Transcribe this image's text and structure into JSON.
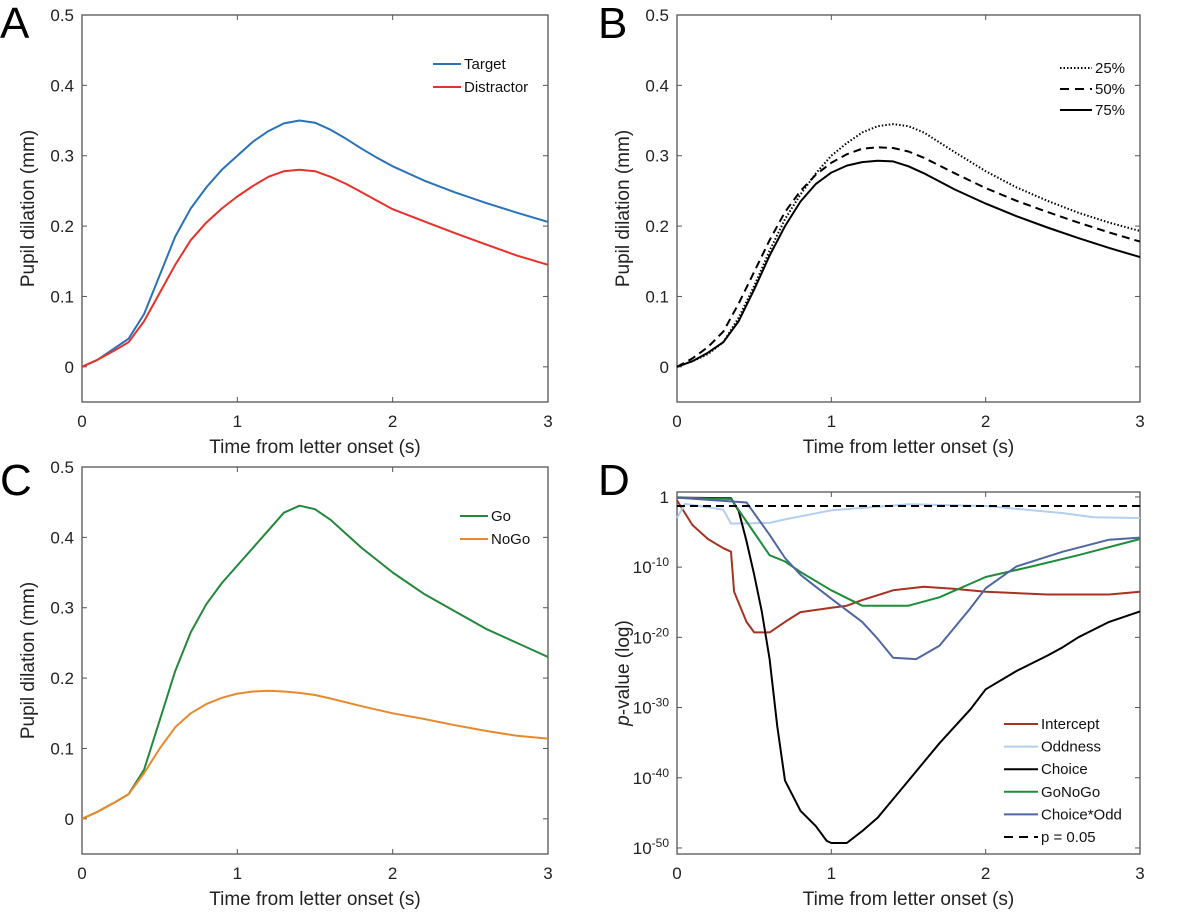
{
  "chart_data": [
    {
      "panel": "A",
      "type": "line",
      "xlabel": "Time from letter onset (s)",
      "ylabel": "Pupil dilation (mm)",
      "xlim": [
        0,
        3
      ],
      "ylim": [
        -0.05,
        0.5
      ],
      "xticks": [
        0,
        1,
        2,
        3
      ],
      "yticks": [
        0,
        0.1,
        0.2,
        0.3,
        0.4,
        0.5
      ],
      "legend_position": "top-right",
      "grid": false,
      "x": [
        0,
        0.1,
        0.2,
        0.3,
        0.4,
        0.5,
        0.6,
        0.7,
        0.8,
        0.9,
        1.0,
        1.1,
        1.2,
        1.3,
        1.4,
        1.5,
        1.6,
        1.7,
        1.8,
        1.9,
        2.0,
        2.2,
        2.4,
        2.6,
        2.8,
        3.0
      ],
      "series": [
        {
          "name": "Target",
          "color": "#2a72b8",
          "style": "solid",
          "values": [
            0,
            0.01,
            0.025,
            0.04,
            0.075,
            0.13,
            0.185,
            0.225,
            0.255,
            0.28,
            0.3,
            0.32,
            0.335,
            0.346,
            0.35,
            0.347,
            0.337,
            0.324,
            0.31,
            0.297,
            0.285,
            0.265,
            0.248,
            0.233,
            0.219,
            0.206
          ]
        },
        {
          "name": "Distractor",
          "color": "#e8312a",
          "style": "solid",
          "values": [
            0,
            0.01,
            0.022,
            0.035,
            0.065,
            0.105,
            0.145,
            0.18,
            0.205,
            0.225,
            0.242,
            0.257,
            0.27,
            0.278,
            0.28,
            0.278,
            0.27,
            0.26,
            0.248,
            0.236,
            0.224,
            0.207,
            0.19,
            0.174,
            0.158,
            0.145
          ]
        }
      ]
    },
    {
      "panel": "B",
      "type": "line",
      "xlabel": "Time from letter onset (s)",
      "ylabel": "Pupil dilation (mm)",
      "xlim": [
        0,
        3
      ],
      "ylim": [
        -0.05,
        0.5
      ],
      "xticks": [
        0,
        1,
        2,
        3
      ],
      "yticks": [
        0,
        0.1,
        0.2,
        0.3,
        0.4,
        0.5
      ],
      "legend_position": "top-right",
      "grid": false,
      "x": [
        0,
        0.1,
        0.2,
        0.3,
        0.4,
        0.5,
        0.6,
        0.7,
        0.8,
        0.9,
        1.0,
        1.1,
        1.2,
        1.3,
        1.4,
        1.5,
        1.6,
        1.8,
        2.0,
        2.2,
        2.4,
        2.6,
        2.8,
        3.0
      ],
      "series": [
        {
          "name": "25%",
          "color": "#000000",
          "style": "dotted",
          "values": [
            0,
            0.008,
            0.018,
            0.035,
            0.07,
            0.115,
            0.165,
            0.21,
            0.245,
            0.275,
            0.3,
            0.318,
            0.333,
            0.342,
            0.345,
            0.342,
            0.333,
            0.305,
            0.278,
            0.255,
            0.236,
            0.219,
            0.205,
            0.193
          ]
        },
        {
          "name": "50%",
          "color": "#000000",
          "style": "dashed",
          "values": [
            0,
            0.012,
            0.028,
            0.05,
            0.09,
            0.135,
            0.18,
            0.22,
            0.25,
            0.273,
            0.29,
            0.302,
            0.31,
            0.312,
            0.311,
            0.306,
            0.297,
            0.275,
            0.254,
            0.236,
            0.22,
            0.205,
            0.191,
            0.178
          ]
        },
        {
          "name": "75%",
          "color": "#000000",
          "style": "solid",
          "values": [
            0,
            0.008,
            0.02,
            0.035,
            0.065,
            0.11,
            0.158,
            0.2,
            0.235,
            0.26,
            0.276,
            0.286,
            0.291,
            0.293,
            0.292,
            0.285,
            0.275,
            0.252,
            0.232,
            0.214,
            0.198,
            0.183,
            0.169,
            0.156
          ]
        }
      ]
    },
    {
      "panel": "C",
      "type": "line",
      "xlabel": "Time from letter onset (s)",
      "ylabel": "Pupil dilation (mm)",
      "xlim": [
        0,
        3
      ],
      "ylim": [
        -0.05,
        0.5
      ],
      "xticks": [
        0,
        1,
        2,
        3
      ],
      "yticks": [
        0,
        0.1,
        0.2,
        0.3,
        0.4,
        0.5
      ],
      "legend_position": "top-right",
      "grid": false,
      "x": [
        0,
        0.1,
        0.2,
        0.3,
        0.4,
        0.5,
        0.6,
        0.7,
        0.8,
        0.9,
        1.0,
        1.1,
        1.2,
        1.3,
        1.4,
        1.5,
        1.6,
        1.8,
        2.0,
        2.2,
        2.4,
        2.6,
        2.8,
        3.0
      ],
      "series": [
        {
          "name": "Go",
          "color": "#23883b",
          "style": "solid",
          "values": [
            0,
            0.01,
            0.022,
            0.035,
            0.07,
            0.14,
            0.21,
            0.265,
            0.305,
            0.335,
            0.36,
            0.385,
            0.41,
            0.435,
            0.445,
            0.44,
            0.425,
            0.385,
            0.35,
            0.32,
            0.295,
            0.27,
            0.25,
            0.23
          ]
        },
        {
          "name": "NoGo",
          "color": "#e8892e",
          "style": "solid",
          "values": [
            0,
            0.01,
            0.022,
            0.035,
            0.065,
            0.1,
            0.13,
            0.15,
            0.163,
            0.172,
            0.178,
            0.181,
            0.182,
            0.181,
            0.179,
            0.176,
            0.171,
            0.16,
            0.15,
            0.142,
            0.133,
            0.125,
            0.118,
            0.114
          ]
        }
      ]
    },
    {
      "panel": "D",
      "type": "line",
      "xlabel": "Time from letter onset (s)",
      "ylabel_italic": "p",
      "ylabel": "-value (log)",
      "xlim": [
        0,
        3
      ],
      "y_scale": "log",
      "ylim_log10": [
        -50.86,
        0.7
      ],
      "xticks": [
        0,
        1,
        2,
        3
      ],
      "yticks": [
        {
          "base": "1",
          "exp": ""
        },
        {
          "base": "10",
          "exp": "-10"
        },
        {
          "base": "10",
          "exp": "-20"
        },
        {
          "base": "10",
          "exp": "-30"
        },
        {
          "base": "10",
          "exp": "-40"
        },
        {
          "base": "10",
          "exp": "-50"
        }
      ],
      "ytick_log10": [
        0,
        -10,
        -20,
        -30,
        -40,
        -50
      ],
      "legend_position": "bottom-right",
      "grid": false,
      "series": [
        {
          "name": "Intercept",
          "color": "#a63322",
          "style": "solid",
          "x": [
            0,
            0.1,
            0.2,
            0.3,
            0.35,
            0.37,
            0.45,
            0.5,
            0.6,
            0.7,
            0.8,
            1.0,
            1.1,
            1.2,
            1.4,
            1.6,
            1.8,
            2.0,
            2.4,
            2.8,
            3.0
          ],
          "log10_p": [
            -0.5,
            -4,
            -6,
            -7.3,
            -7.8,
            -13.5,
            -17.8,
            -19.3,
            -19.3,
            -17.8,
            -16.4,
            -15.8,
            -15.5,
            -14.7,
            -13.3,
            -12.8,
            -13.1,
            -13.5,
            -13.9,
            -13.9,
            -13.5
          ]
        },
        {
          "name": "Oddness",
          "color": "#b3cfee",
          "style": "solid",
          "x": [
            0,
            0.05,
            0.3,
            0.35,
            0.6,
            0.7,
            1.0,
            1.5,
            2.0,
            2.5,
            2.7,
            3.0
          ],
          "log10_p": [
            -3,
            -1,
            -1.8,
            -3.8,
            -3.7,
            -3.2,
            -1.9,
            -1.05,
            -1.3,
            -2.3,
            -2.9,
            -3
          ]
        },
        {
          "name": "Choice",
          "color": "#000000",
          "style": "solid",
          "x": [
            0,
            0.35,
            0.4,
            0.45,
            0.5,
            0.55,
            0.6,
            0.65,
            0.7,
            0.8,
            0.9,
            0.97,
            1.0,
            1.1,
            1.2,
            1.3,
            1.5,
            1.7,
            1.9,
            2.0,
            2.2,
            2.4,
            2.5,
            2.6,
            2.8,
            3.0
          ],
          "log10_p": [
            -0.1,
            -0.2,
            -2,
            -6.3,
            -11.1,
            -16.4,
            -23.1,
            -32.7,
            -40.4,
            -44.7,
            -46.9,
            -49,
            -49.3,
            -49.3,
            -47.6,
            -45.7,
            -40.4,
            -35.1,
            -30.3,
            -27.4,
            -24.8,
            -22.6,
            -21.4,
            -20,
            -17.8,
            -16.3
          ]
        },
        {
          "name": "GoNoGo",
          "color": "#1e8c3a",
          "style": "solid",
          "x": [
            0,
            0.35,
            0.45,
            0.6,
            0.7,
            0.8,
            1.0,
            1.2,
            1.5,
            1.7,
            2.0,
            2.3,
            2.6,
            3.0
          ],
          "log10_p": [
            -0.1,
            -0.3,
            -3.5,
            -8.3,
            -9.2,
            -10.7,
            -13.3,
            -15.5,
            -15.5,
            -14.3,
            -11.4,
            -9.9,
            -8.3,
            -6
          ]
        },
        {
          "name": "Choice*Odd",
          "color": "#5066a0",
          "style": "solid",
          "x": [
            0,
            0.45,
            0.6,
            0.7,
            0.8,
            0.9,
            1.0,
            1.2,
            1.3,
            1.4,
            1.55,
            1.7,
            1.9,
            2.0,
            2.2,
            2.5,
            2.8,
            3.0
          ],
          "log10_p": [
            -0.1,
            -0.8,
            -5.4,
            -8.7,
            -11.1,
            -12.8,
            -14.5,
            -17.8,
            -20.2,
            -22.9,
            -23.1,
            -21.2,
            -15.9,
            -13,
            -9.9,
            -7.8,
            -6.1,
            -5.8
          ]
        },
        {
          "name": "p = 0.05",
          "color": "#000000",
          "style": "dashed",
          "x": [
            0,
            3
          ],
          "log10_p": [
            -1.3,
            -1.3
          ]
        }
      ]
    }
  ]
}
